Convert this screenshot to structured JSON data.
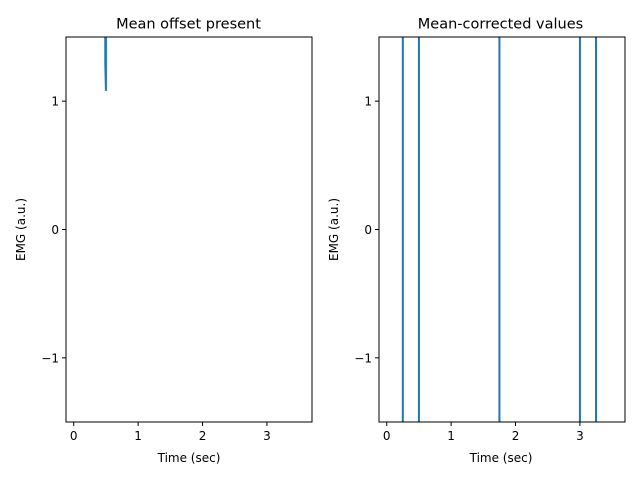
{
  "chart_data": [
    {
      "type": "line",
      "title": "Mean offset present",
      "xlabel": "Time (sec)",
      "ylabel": "EMG (a.u.)",
      "xlim": [
        -0.12,
        3.7
      ],
      "ylim": [
        -1.5,
        1.5
      ],
      "xticks": [
        0,
        1,
        2,
        3
      ],
      "xtick_labels": [
        "0",
        "1",
        "2",
        "3"
      ],
      "yticks": [
        -1,
        0,
        1
      ],
      "ytick_labels": [
        "−1",
        "0",
        "1"
      ],
      "grid": false,
      "series": [
        {
          "color": "#1f77b4",
          "x": [
            0.49,
            0.49,
            0.5,
            0.5,
            0.5
          ],
          "y": [
            1.5,
            1.3,
            1.08,
            1.3,
            1.5
          ]
        }
      ]
    },
    {
      "type": "line",
      "title": "Mean-corrected values",
      "xlabel": "Time (sec)",
      "ylabel": "EMG (a.u.)",
      "xlim": [
        -0.12,
        3.7
      ],
      "ylim": [
        -1.5,
        1.5
      ],
      "xticks": [
        0,
        1,
        2,
        3
      ],
      "xtick_labels": [
        "0",
        "1",
        "2",
        "3"
      ],
      "yticks": [
        -1,
        0,
        1
      ],
      "ytick_labels": [
        "−1",
        "0",
        "1"
      ],
      "grid": false,
      "series": [
        {
          "color": "#1f77b4",
          "x": [
            0.25,
            0.25,
            0.5,
            0.5,
            1.75,
            1.75,
            3.0,
            3.0,
            3.25,
            3.25
          ],
          "y": [
            1.5,
            -1.5,
            -1.5,
            1.5,
            1.5,
            -1.5,
            -1.5,
            1.5,
            1.5,
            -1.5
          ],
          "segments": [
            [
              0,
              1
            ],
            [
              2,
              3
            ],
            [
              4,
              5
            ],
            [
              6,
              7
            ],
            [
              8,
              9
            ]
          ]
        }
      ]
    }
  ]
}
